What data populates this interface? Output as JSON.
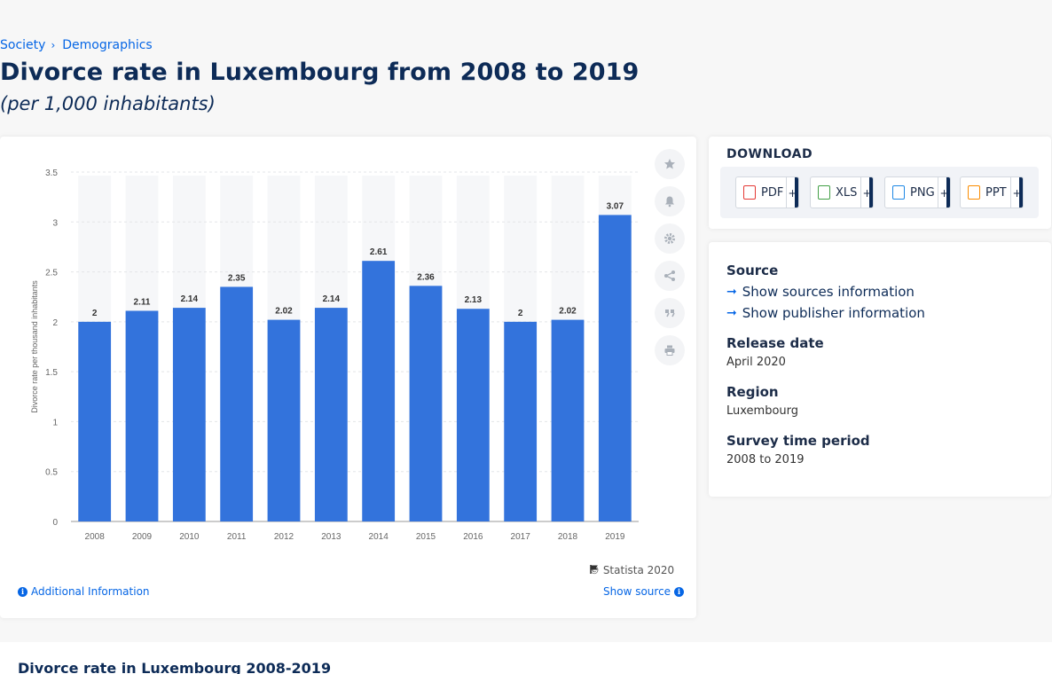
{
  "breadcrumb": [
    {
      "label": "Society"
    },
    {
      "label": "Demographics"
    }
  ],
  "breadcrumb_separator": "›",
  "page": {
    "title": "Divorce rate in Luxembourg from 2008 to 2019",
    "subtitle": "(per 1,000 inhabitants)"
  },
  "chart_data": {
    "type": "bar",
    "categories": [
      "2008",
      "2009",
      "2010",
      "2011",
      "2012",
      "2013",
      "2014",
      "2015",
      "2016",
      "2017",
      "2018",
      "2019"
    ],
    "values": [
      2,
      2.11,
      2.14,
      2.35,
      2.02,
      2.14,
      2.61,
      2.36,
      2.13,
      2,
      2.02,
      3.07
    ],
    "data_labels": [
      "2",
      "2.11",
      "2.14",
      "2.35",
      "2.02",
      "2.14",
      "2.61",
      "2.36",
      "2.13",
      "2",
      "2.02",
      "3.07"
    ],
    "title": "",
    "xlabel": "",
    "ylabel": "Divorce rate per thousand inhabitants",
    "ylim": [
      0,
      3.5
    ],
    "yticks": [
      "0",
      "0.5",
      "1",
      "1.5",
      "2",
      "2.5",
      "3",
      "3.5"
    ],
    "bar_color": "#3373dc",
    "grid": true,
    "legend": "none"
  },
  "chart_footer": {
    "copyright": "© Statista 2020",
    "additional_info": "Additional Information",
    "show_source": "Show source"
  },
  "toolbar": {
    "icons": [
      "star-icon",
      "bell-icon",
      "gear-icon",
      "share-icon",
      "quote-icon",
      "print-icon"
    ]
  },
  "download": {
    "title": "DOWNLOAD",
    "buttons": [
      {
        "label": "PDF",
        "plus": "+",
        "color": "#e53935"
      },
      {
        "label": "XLS",
        "plus": "+",
        "color": "#43a047"
      },
      {
        "label": "PNG",
        "plus": "+",
        "color": "#1e88e5"
      },
      {
        "label": "PPT",
        "plus": "+",
        "color": "#fb8c00"
      }
    ]
  },
  "meta": {
    "source_heading": "Source",
    "show_sources": "Show sources information",
    "show_publisher": "Show publisher information",
    "release_heading": "Release date",
    "release_value": "April 2020",
    "region_heading": "Region",
    "region_value": "Luxembourg",
    "period_heading": "Survey time period",
    "period_value": "2008 to 2019"
  },
  "bottom": {
    "title": "Divorce rate in Luxembourg 2008-2019"
  }
}
